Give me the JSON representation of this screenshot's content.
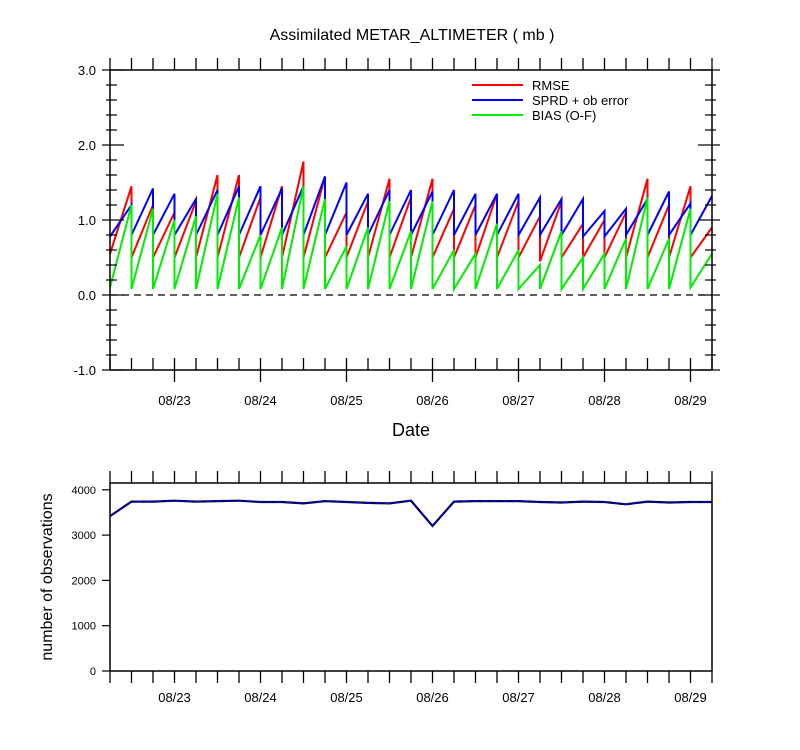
{
  "chart_data": [
    {
      "type": "line",
      "title": "Assimilated METAR_ALTIMETER ( mb )",
      "xlabel": "Date",
      "ylabel": "",
      "ylim": [
        -1.0,
        3.0
      ],
      "xlim": [
        0,
        336
      ],
      "yticks": [
        -1.0,
        0.0,
        1.0,
        2.0,
        3.0
      ],
      "ytick_labels": [
        "-1.0",
        "0.0",
        "1.0",
        "2.0",
        "3.0"
      ],
      "xticks": [
        {
          "label": "08/23",
          "pos": 36
        },
        {
          "label": "08/24",
          "pos": 84
        },
        {
          "label": "08/25",
          "pos": 132
        },
        {
          "label": "08/26",
          "pos": 180
        },
        {
          "label": "08/27",
          "pos": 228
        },
        {
          "label": "08/28",
          "pos": 276
        },
        {
          "label": "08/29",
          "pos": 324
        }
      ],
      "reference_line": 0.0,
      "legend_position": "top-right",
      "x_cycle_starts": [
        0,
        12,
        24,
        36,
        48,
        60,
        72,
        84,
        96,
        108,
        120,
        132,
        144,
        156,
        168,
        180,
        192,
        204,
        216,
        228,
        240,
        252,
        264,
        276,
        288,
        300,
        312,
        324
      ],
      "x_cycle_length": 12,
      "series": [
        {
          "name": "RMSE",
          "color": "#ff0000",
          "prior": [
            0.55,
            0.5,
            0.5,
            0.5,
            0.5,
            0.5,
            0.5,
            0.5,
            0.5,
            0.5,
            0.5,
            0.5,
            0.5,
            0.5,
            0.5,
            0.5,
            0.5,
            0.5,
            0.5,
            0.5,
            0.45,
            0.5,
            0.5,
            0.5,
            0.5,
            0.5,
            0.5,
            0.5
          ],
          "posterior": [
            1.45,
            1.2,
            1.1,
            1.25,
            1.6,
            1.6,
            1.3,
            1.45,
            1.78,
            1.58,
            1.1,
            1.25,
            1.55,
            1.3,
            1.55,
            1.15,
            1.2,
            1.35,
            1.25,
            1.05,
            1.25,
            0.95,
            1.0,
            1.1,
            1.55,
            1.2,
            1.45,
            0.9
          ]
        },
        {
          "name": "SPRD + ob error",
          "color": "#0000ff",
          "prior": [
            0.78,
            0.8,
            0.8,
            0.8,
            0.8,
            0.8,
            0.8,
            0.8,
            0.8,
            0.8,
            0.8,
            0.8,
            0.8,
            0.8,
            0.8,
            0.8,
            0.8,
            0.8,
            0.8,
            0.8,
            0.8,
            0.8,
            0.78,
            0.78,
            0.8,
            0.8,
            0.8,
            0.8
          ],
          "posterior": [
            1.2,
            1.42,
            1.35,
            1.28,
            1.4,
            1.45,
            1.45,
            1.42,
            1.45,
            1.58,
            1.5,
            1.35,
            1.4,
            1.4,
            1.38,
            1.4,
            1.35,
            1.35,
            1.35,
            1.3,
            1.28,
            1.28,
            1.12,
            1.15,
            1.28,
            1.38,
            1.22,
            1.32
          ]
        },
        {
          "name": "BIAS (O-F)",
          "color": "#00ee00",
          "prior": [
            0.1,
            0.08,
            0.08,
            0.08,
            0.08,
            0.08,
            0.08,
            0.08,
            0.08,
            0.08,
            0.08,
            0.08,
            0.08,
            0.08,
            0.08,
            0.08,
            0.08,
            0.08,
            0.08,
            0.08,
            0.08,
            0.08,
            0.08,
            0.08,
            0.08,
            0.08,
            0.08,
            0.1
          ],
          "posterior": [
            1.2,
            1.15,
            1.0,
            1.05,
            1.35,
            1.3,
            0.8,
            0.9,
            1.45,
            1.28,
            0.65,
            0.9,
            1.25,
            0.85,
            1.25,
            0.6,
            0.55,
            0.95,
            0.6,
            0.4,
            0.85,
            0.5,
            0.55,
            0.75,
            1.3,
            0.75,
            1.15,
            0.55
          ]
        }
      ]
    },
    {
      "type": "line",
      "title": "",
      "xlabel": "",
      "ylabel": "number of observations",
      "ylim": [
        0,
        4150
      ],
      "xlim": [
        0,
        336
      ],
      "yticks": [
        0,
        1000,
        2000,
        3000,
        4000
      ],
      "ytick_labels": [
        "0",
        "1000",
        "2000",
        "3000",
        "4000"
      ],
      "xticks": [
        {
          "label": "08/23",
          "pos": 36
        },
        {
          "label": "08/24",
          "pos": 84
        },
        {
          "label": "08/25",
          "pos": 132
        },
        {
          "label": "08/26",
          "pos": 180
        },
        {
          "label": "08/27",
          "pos": 228
        },
        {
          "label": "08/28",
          "pos": 276
        },
        {
          "label": "08/29",
          "pos": 324
        }
      ],
      "series": [
        {
          "name": "observations",
          "color": "#000000",
          "x": [
            0,
            12,
            24,
            36,
            48,
            60,
            72,
            84,
            96,
            108,
            120,
            132,
            144,
            156,
            168,
            180,
            192,
            204,
            216,
            228,
            240,
            252,
            264,
            276,
            288,
            300,
            312,
            324,
            336
          ],
          "values": [
            3420,
            3740,
            3740,
            3760,
            3740,
            3750,
            3760,
            3730,
            3730,
            3700,
            3750,
            3730,
            3710,
            3700,
            3760,
            3200,
            3740,
            3750,
            3750,
            3750,
            3730,
            3720,
            3740,
            3730,
            3680,
            3740,
            3720,
            3730,
            3730
          ]
        }
      ]
    }
  ]
}
